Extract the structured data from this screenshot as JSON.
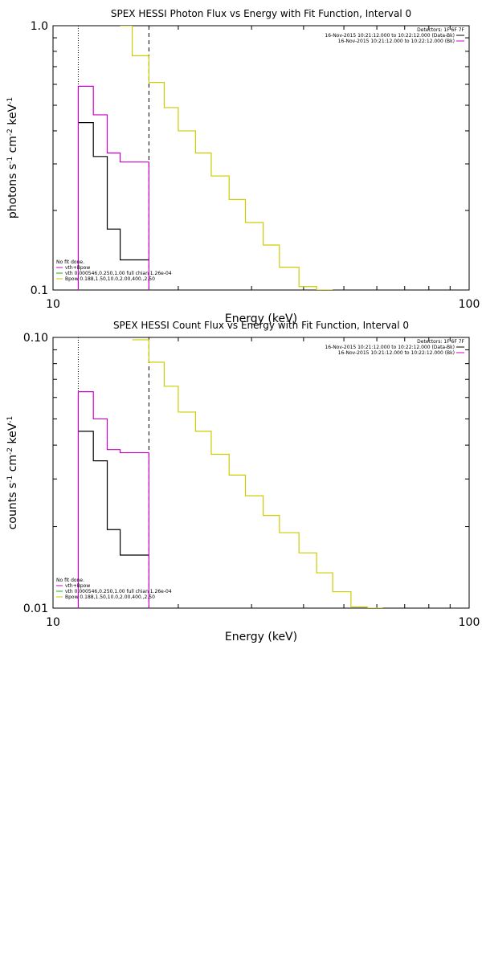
{
  "chart_data": [
    {
      "type": "line",
      "step": true,
      "title": "SPEX HESSI Photon Flux vs Energy with Fit Function, Interval 0",
      "xlabel": "Energy (keV)",
      "ylabel_parts": [
        "photons s",
        "-1",
        " cm",
        "-2",
        " keV",
        "-1"
      ],
      "xscale": "log",
      "yscale": "log",
      "xlim": [
        10,
        100
      ],
      "ylim": [
        0.1,
        1.0
      ],
      "xticks": [
        10,
        100
      ],
      "xtick_labels": [
        "10",
        "100"
      ],
      "yticks": [
        0.1,
        1.0
      ],
      "ytick_labels": [
        "0.1",
        "1.0"
      ],
      "vlines": [
        {
          "x": 11.5,
          "style": "dotted"
        },
        {
          "x": 17.0,
          "style": "dashed"
        }
      ],
      "detectors_label": "Detectors: 1F 6F 7F",
      "time_ranges": [
        {
          "text": "16-Nov-2015 10:21:12.000 to 10:22:12.000 (Data-Bk)",
          "color": "#000000"
        },
        {
          "text": "16-Nov-2015 10:21:12.000 to 10:22:12.000 (Bk)",
          "color": "#cc00cc"
        }
      ],
      "legend_header": "No fit done.",
      "legend": [
        {
          "text": "vth+Bpow",
          "color": "#cc00cc"
        },
        {
          "text": "vth 0.000546,0.250,1.00  full chian 1.26e-04",
          "color": "#00bb00"
        },
        {
          "text": "Bpow 0.188,1.50,10.0,2.00,400.,2.50",
          "color": "#cccc00"
        }
      ],
      "series": [
        {
          "name": "Data-Bk",
          "color": "#000000",
          "edges": [
            11.5,
            12.5,
            13.5,
            14.5,
            15.5,
            17.0
          ],
          "values": [
            0.43,
            0.32,
            0.17,
            0.13,
            0.13
          ]
        },
        {
          "name": "Bk",
          "color": "#cc00cc",
          "edges": [
            11.5,
            12.5,
            13.5,
            14.5,
            15.5,
            17.0
          ],
          "values": [
            0.59,
            0.46,
            0.33,
            0.305,
            0.305
          ]
        },
        {
          "name": "Bpow",
          "color": "#cccc00",
          "edges": [
            14.5,
            15.5,
            17.0,
            18.5,
            20.0,
            22.0,
            24.0,
            26.5,
            29.0,
            32.0,
            35.0,
            39.0,
            43.0,
            47.0
          ],
          "values": [
            1.0,
            0.77,
            0.61,
            0.49,
            0.4,
            0.33,
            0.27,
            0.22,
            0.18,
            0.148,
            0.122,
            0.103,
            0.1
          ]
        }
      ]
    },
    {
      "type": "line",
      "step": true,
      "title": "SPEX HESSI Count Flux vs Energy with Fit Function, Interval 0",
      "xlabel": "Energy (keV)",
      "ylabel_parts": [
        "counts s",
        "-1",
        " cm",
        "-2",
        " keV",
        "-1"
      ],
      "xscale": "log",
      "yscale": "log",
      "xlim": [
        10,
        100
      ],
      "ylim": [
        0.01,
        0.1
      ],
      "xticks": [
        10,
        100
      ],
      "xtick_labels": [
        "10",
        "100"
      ],
      "yticks": [
        0.01,
        0.1
      ],
      "ytick_labels": [
        "0.01",
        "0.10"
      ],
      "vlines": [
        {
          "x": 11.5,
          "style": "dotted"
        },
        {
          "x": 17.0,
          "style": "dashed"
        }
      ],
      "detectors_label": "Detectors: 1F 6F 7F",
      "time_ranges": [
        {
          "text": "16-Nov-2015 10:21:12.000 to 10:22:12.000 (Data-Bk)",
          "color": "#000000"
        },
        {
          "text": "16-Nov-2015 10:21:12.000 to 10:22:12.000 (Bk)",
          "color": "#cc00cc"
        }
      ],
      "legend_header": "No fit done.",
      "legend": [
        {
          "text": "vth+Bpow",
          "color": "#cc00cc"
        },
        {
          "text": "vth 0.000546,0.250,1.00  full chian 1.26e-04",
          "color": "#00bb00"
        },
        {
          "text": "Bpow 0.188,1.50,10.0,2.00,400.,2.50",
          "color": "#cccc00"
        }
      ],
      "series": [
        {
          "name": "Data-Bk",
          "color": "#000000",
          "edges": [
            11.5,
            12.5,
            13.5,
            14.5,
            15.5,
            17.0
          ],
          "values": [
            0.045,
            0.035,
            0.0195,
            0.0157,
            0.0157
          ]
        },
        {
          "name": "Bk",
          "color": "#cc00cc",
          "edges": [
            11.5,
            12.5,
            13.5,
            14.5,
            15.5,
            17.0
          ],
          "values": [
            0.063,
            0.05,
            0.0385,
            0.0375,
            0.0375
          ]
        },
        {
          "name": "Bpow",
          "color": "#cccc00",
          "edges": [
            15.5,
            17.0,
            18.5,
            20.0,
            22.0,
            24.0,
            26.5,
            29.0,
            32.0,
            35.0,
            39.0,
            43.0,
            47.0,
            52.0,
            57.0,
            62.0
          ],
          "values": [
            0.098,
            0.081,
            0.066,
            0.053,
            0.045,
            0.037,
            0.031,
            0.026,
            0.022,
            0.019,
            0.016,
            0.0135,
            0.0115,
            0.0101,
            0.01
          ]
        }
      ]
    }
  ]
}
